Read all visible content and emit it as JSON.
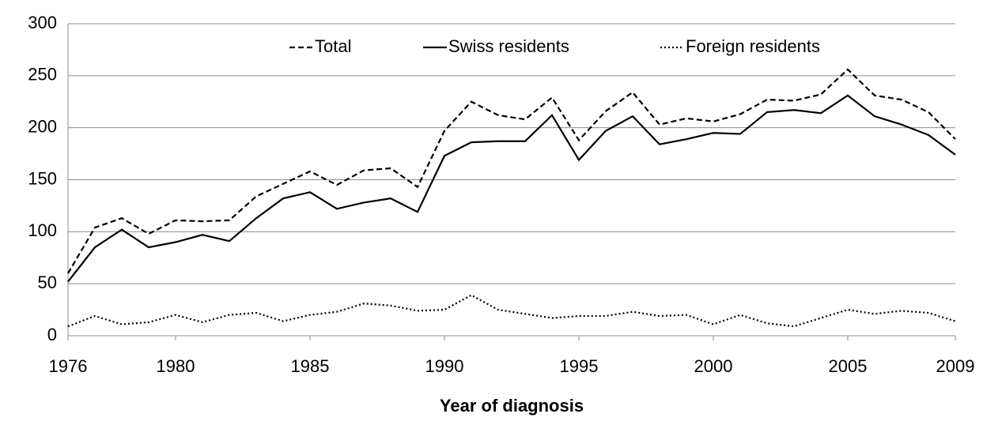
{
  "chart_data": {
    "type": "line",
    "x_label": "Year of diagnosis",
    "x": [
      1976,
      1977,
      1978,
      1979,
      1980,
      1981,
      1982,
      1983,
      1984,
      1985,
      1986,
      1987,
      1988,
      1989,
      1990,
      1991,
      1992,
      1993,
      1994,
      1995,
      1996,
      1997,
      1998,
      1999,
      2000,
      2001,
      2002,
      2003,
      2004,
      2005,
      2006,
      2007,
      2008,
      2009
    ],
    "series": [
      {
        "name": "Total",
        "color": "#000000",
        "dash": "dashed",
        "values": [
          60,
          104,
          113,
          98,
          111,
          110,
          111,
          134,
          146,
          158,
          145,
          159,
          161,
          143,
          197,
          225,
          212,
          208,
          229,
          188,
          216,
          234,
          203,
          209,
          206,
          213,
          227,
          226,
          232,
          256,
          231,
          227,
          215,
          189
        ]
      },
      {
        "name": "Swiss residents",
        "color": "#000000",
        "dash": "solid",
        "values": [
          52,
          85,
          102,
          85,
          90,
          97,
          91,
          113,
          132,
          138,
          122,
          128,
          132,
          119,
          173,
          186,
          187,
          187,
          212,
          169,
          197,
          211,
          184,
          189,
          195,
          194,
          215,
          217,
          214,
          231,
          211,
          203,
          193,
          174
        ]
      },
      {
        "name": "Foreign residents",
        "color": "#000000",
        "dash": "dotted",
        "values": [
          9,
          19,
          11,
          13,
          20,
          13,
          20,
          22,
          14,
          20,
          23,
          31,
          29,
          24,
          25,
          39,
          25,
          21,
          17,
          19,
          19,
          23,
          19,
          20,
          11,
          20,
          12,
          9,
          17,
          25,
          21,
          24,
          22,
          14
        ]
      }
    ],
    "xlim": [
      1976,
      2009
    ],
    "xticks": [
      1976,
      1980,
      1985,
      1990,
      1995,
      2000,
      2005,
      2009
    ],
    "ylim": [
      0,
      300
    ],
    "yticks": [
      0,
      50,
      100,
      150,
      200,
      250,
      300
    ],
    "grid": true,
    "legend": "top"
  }
}
